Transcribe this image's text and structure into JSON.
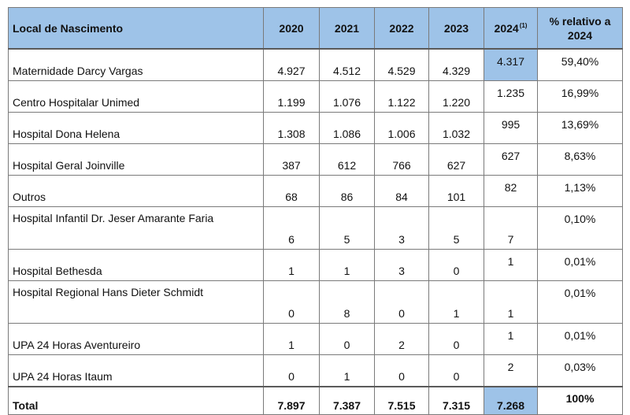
{
  "table": {
    "headers": {
      "place": "Local de Nascimento",
      "y2020": "2020",
      "y2021": "2021",
      "y2022": "2022",
      "y2023": "2023",
      "y2024": "2024",
      "y2024_note": "(1)",
      "pct": "% relativo a 2024"
    },
    "rows": [
      {
        "name": "Maternidade Darcy Vargas",
        "v2020": "4.927",
        "v2021": "4.512",
        "v2022": "4.529",
        "v2023": "4.329",
        "v2024": "4.317",
        "pct": "59,40%"
      },
      {
        "name": "Centro Hospitalar Unimed",
        "v2020": "1.199",
        "v2021": "1.076",
        "v2022": "1.122",
        "v2023": "1.220",
        "v2024": "1.235",
        "pct": "16,99%"
      },
      {
        "name": "Hospital Dona Helena",
        "v2020": "1.308",
        "v2021": "1.086",
        "v2022": "1.006",
        "v2023": "1.032",
        "v2024": "995",
        "pct": "13,69%"
      },
      {
        "name": "Hospital Geral Joinville",
        "v2020": "387",
        "v2021": "612",
        "v2022": "766",
        "v2023": "627",
        "v2024": "627",
        "pct": "8,63%"
      },
      {
        "name": "Outros",
        "v2020": "68",
        "v2021": "86",
        "v2022": "84",
        "v2023": "101",
        "v2024": "82",
        "pct": "1,13%"
      },
      {
        "name": "Hospital Infantil Dr. Jeser Amarante Faria",
        "v2020": "6",
        "v2021": "5",
        "v2022": "3",
        "v2023": "5",
        "v2024": "7",
        "pct": "0,10%"
      },
      {
        "name": "Hospital Bethesda",
        "v2020": "1",
        "v2021": "1",
        "v2022": "3",
        "v2023": "0",
        "v2024": "1",
        "pct": "0,01%"
      },
      {
        "name": "Hospital Regional Hans Dieter Schmidt",
        "v2020": "0",
        "v2021": "8",
        "v2022": "0",
        "v2023": "1",
        "v2024": "1",
        "pct": "0,01%"
      },
      {
        "name": "UPA 24 Horas Aventureiro",
        "v2020": "1",
        "v2021": "0",
        "v2022": "2",
        "v2023": "0",
        "v2024": "1",
        "pct": "0,01%"
      },
      {
        "name": "UPA 24 Horas Itaum",
        "v2020": "0",
        "v2021": "1",
        "v2022": "0",
        "v2023": "0",
        "v2024": "2",
        "pct": "0,03%"
      }
    ],
    "total": {
      "name": "Total",
      "v2020": "7.897",
      "v2021": "7.387",
      "v2022": "7.515",
      "v2023": "7.315",
      "v2024": "7.268",
      "pct": "100%"
    }
  },
  "colors": {
    "header_bg": "#9ec3e8",
    "highlight_bg": "#9ec3e8",
    "border": "#7a7a7a"
  }
}
